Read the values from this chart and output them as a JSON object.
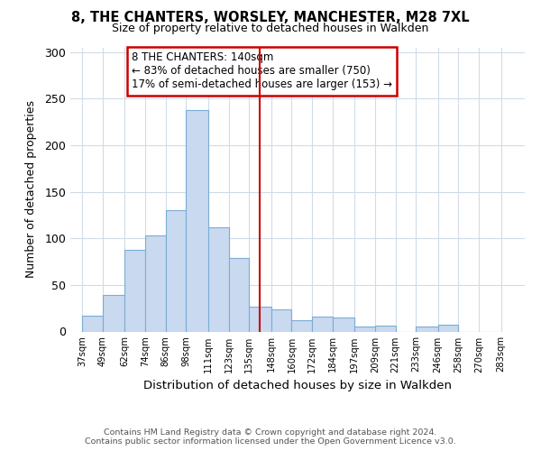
{
  "title": "8, THE CHANTERS, WORSLEY, MANCHESTER, M28 7XL",
  "subtitle": "Size of property relative to detached houses in Walkden",
  "xlabel": "Distribution of detached houses by size in Walkden",
  "ylabel": "Number of detached properties",
  "footer_line1": "Contains HM Land Registry data © Crown copyright and database right 2024.",
  "footer_line2": "Contains public sector information licensed under the Open Government Licence v3.0.",
  "bar_left_edges": [
    37,
    49,
    62,
    74,
    86,
    98,
    111,
    123,
    135,
    148,
    160,
    172,
    184,
    197,
    209,
    221,
    233,
    246,
    258,
    270
  ],
  "bar_heights": [
    17,
    39,
    88,
    103,
    130,
    238,
    112,
    79,
    27,
    24,
    12,
    16,
    15,
    5,
    6,
    0,
    5,
    7,
    0,
    0
  ],
  "bar_color": "#c9d9f0",
  "bar_edgecolor": "#7aadd4",
  "vline_x": 141.5,
  "vline_color": "#cc0000",
  "annotation_title": "8 THE CHANTERS: 140sqm",
  "annotation_line1": "← 83% of detached houses are smaller (750)",
  "annotation_line2": "17% of semi-detached houses are larger (153) →",
  "annotation_box_color": "#ffffff",
  "annotation_box_edgecolor": "#cc0000",
  "xlim": [
    30,
    297
  ],
  "ylim": [
    0,
    305
  ],
  "yticks": [
    0,
    50,
    100,
    150,
    200,
    250,
    300
  ],
  "xtick_labels": [
    "37sqm",
    "49sqm",
    "62sqm",
    "74sqm",
    "86sqm",
    "98sqm",
    "111sqm",
    "123sqm",
    "135sqm",
    "148sqm",
    "160sqm",
    "172sqm",
    "184sqm",
    "197sqm",
    "209sqm",
    "221sqm",
    "233sqm",
    "246sqm",
    "258sqm",
    "270sqm",
    "283sqm"
  ],
  "xtick_positions": [
    37,
    49,
    62,
    74,
    86,
    98,
    111,
    123,
    135,
    148,
    160,
    172,
    184,
    197,
    209,
    221,
    233,
    246,
    258,
    270,
    283
  ],
  "background_color": "#ffffff",
  "grid_color": "#d0dce8"
}
